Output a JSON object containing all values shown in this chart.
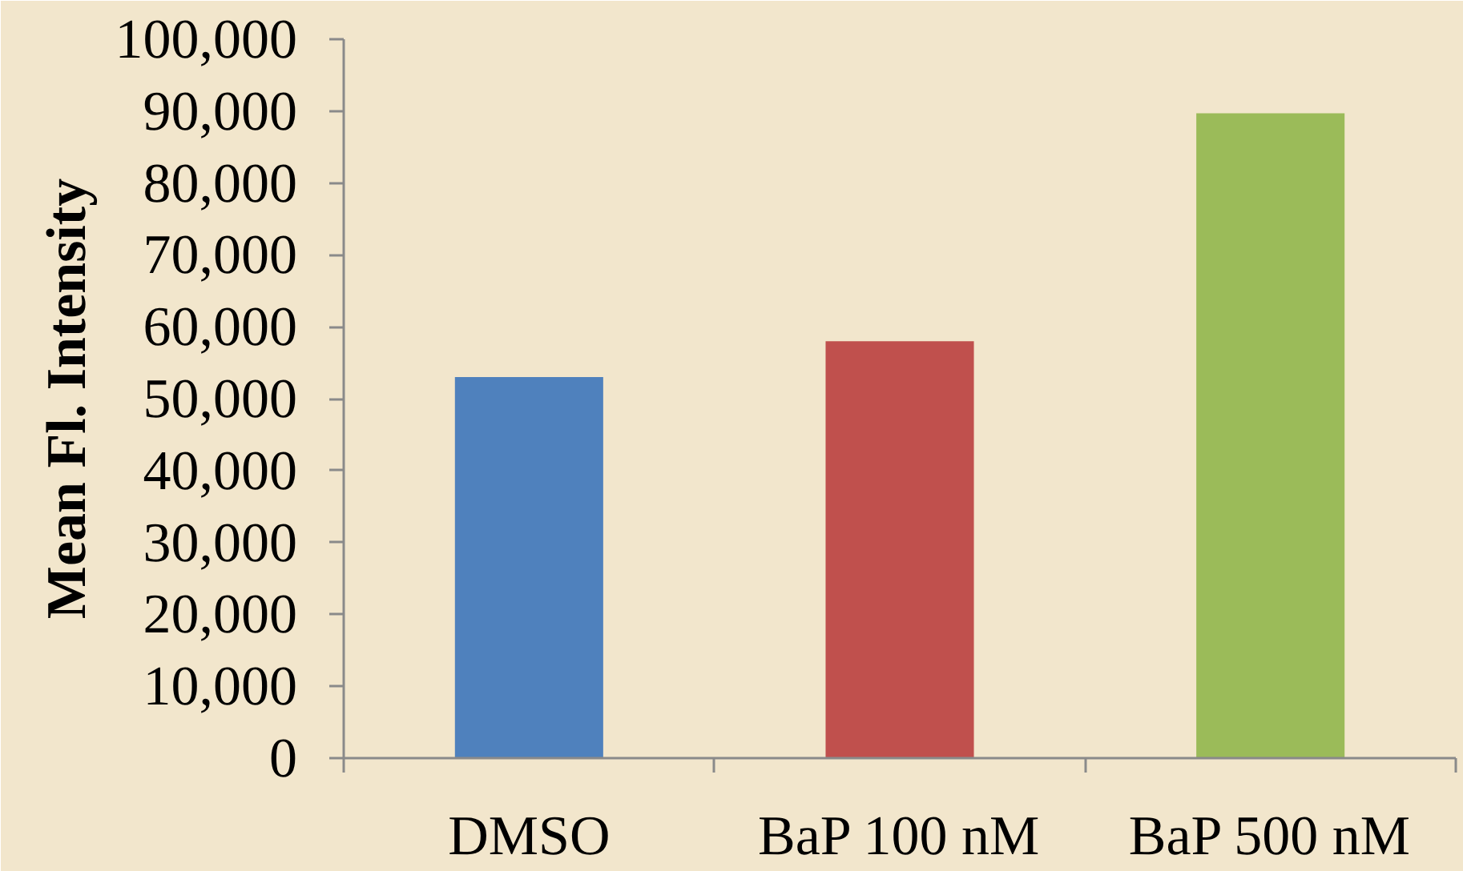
{
  "chart_data": {
    "type": "bar",
    "categories": [
      "DMSO",
      "BaP 100 nM",
      "BaP 500 nM"
    ],
    "values": [
      53000,
      58000,
      89700
    ],
    "colors": [
      "#4f81bd",
      "#c0504d",
      "#9bbb59"
    ],
    "ylabel": "Mean Fl. Intensity",
    "ylim": [
      0,
      100000
    ],
    "yticks": [
      0,
      {
        "value": 10000,
        "label": "10,000"
      },
      {
        "value": 20000,
        "label": "20,000"
      },
      {
        "value": 30000,
        "label": "30,000"
      },
      {
        "value": 40000,
        "label": "40,000"
      },
      {
        "value": 50000,
        "label": "50,000"
      },
      {
        "value": 60000,
        "label": "60,000"
      },
      {
        "value": 70000,
        "label": "70,000"
      },
      {
        "value": 80000,
        "label": "80,000"
      },
      {
        "value": 90000,
        "label": "90,000"
      },
      {
        "value": 100000,
        "label": "100,000"
      }
    ]
  }
}
